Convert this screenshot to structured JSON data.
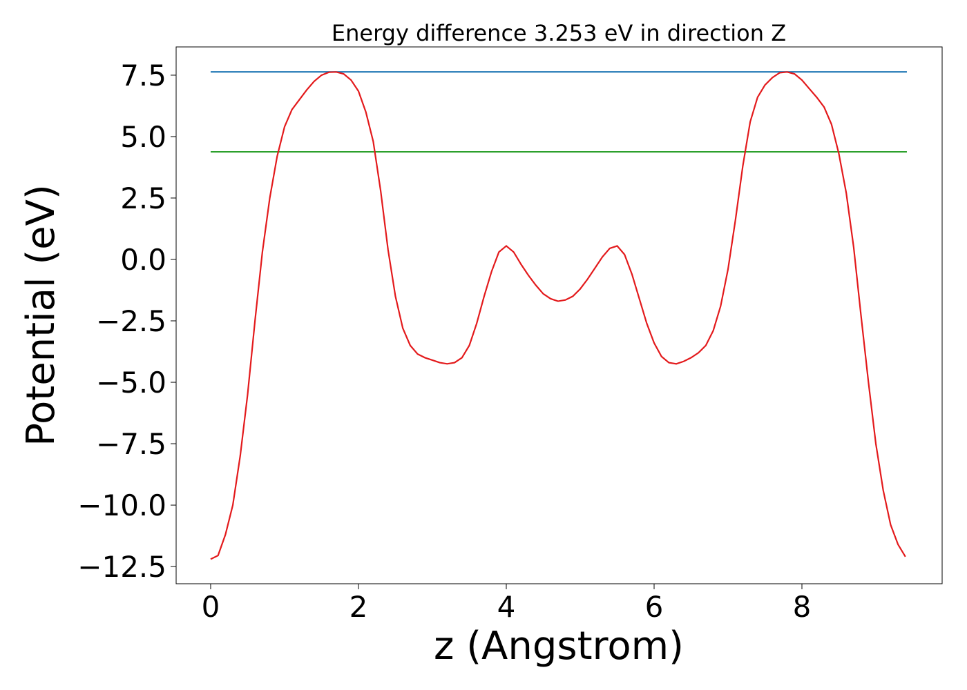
{
  "chart_data": {
    "type": "line",
    "title": "Energy difference 3.253 eV in direction Z",
    "xlabel": "z (Angstrom)",
    "ylabel": "Potential (eV)",
    "xlim": [
      -0.467,
      9.897
    ],
    "ylim": [
      -13.2,
      8.65
    ],
    "xticks": [
      0,
      2,
      4,
      6,
      8
    ],
    "yticks": [
      {
        "value": 7.5,
        "label": "7.5"
      },
      {
        "value": 5,
        "label": "5.0"
      },
      {
        "value": 2.5,
        "label": "2.5"
      },
      {
        "value": 0,
        "label": "0.0"
      },
      {
        "value": -2.5,
        "label": "−2.5"
      },
      {
        "value": -5,
        "label": "−5.0"
      },
      {
        "value": -7.5,
        "label": "−7.5"
      },
      {
        "value": -10,
        "label": "−10.0"
      },
      {
        "value": -12.5,
        "label": "−12.5"
      }
    ],
    "series": [
      {
        "color": "#1f77b4",
        "x": [
          0,
          9.42
        ],
        "values": [
          7.633,
          7.633
        ]
      },
      {
        "color": "#2ca02c",
        "x": [
          0,
          9.42
        ],
        "values": [
          4.38,
          4.38
        ]
      },
      {
        "color": "#e31a1c",
        "x": [
          0,
          0.1,
          0.2,
          0.3,
          0.4,
          0.5,
          0.6,
          0.7,
          0.8,
          0.9,
          1.0,
          1.1,
          1.2,
          1.3,
          1.4,
          1.5,
          1.6,
          1.7,
          1.8,
          1.9,
          2.0,
          2.1,
          2.2,
          2.3,
          2.4,
          2.5,
          2.6,
          2.7,
          2.8,
          2.9,
          3.0,
          3.1,
          3.2,
          3.3,
          3.4,
          3.5,
          3.6,
          3.7,
          3.8,
          3.9,
          4.0,
          4.1,
          4.2,
          4.3,
          4.4,
          4.5,
          4.6,
          4.7,
          4.8,
          4.9,
          5.0,
          5.1,
          5.2,
          5.3,
          5.4,
          5.5,
          5.6,
          5.7,
          5.8,
          5.9,
          6.0,
          6.1,
          6.2,
          6.3,
          6.4,
          6.5,
          6.6,
          6.7,
          6.8,
          6.9,
          7.0,
          7.1,
          7.2,
          7.3,
          7.4,
          7.5,
          7.6,
          7.7,
          7.8,
          7.9,
          8.0,
          8.1,
          8.2,
          8.3,
          8.4,
          8.5,
          8.6,
          8.7,
          8.8,
          8.9,
          9.0,
          9.1,
          9.2,
          9.3,
          9.4
        ],
        "values": [
          -12.2,
          -12.05,
          -11.2,
          -10,
          -8,
          -5.5,
          -2.5,
          0.3,
          2.5,
          4.2,
          5.4,
          6.1,
          6.5,
          6.9,
          7.25,
          7.5,
          7.62,
          7.63,
          7.55,
          7.3,
          6.85,
          6.0,
          4.8,
          2.8,
          0.4,
          -1.5,
          -2.8,
          -3.5,
          -3.85,
          -4.0,
          -4.1,
          -4.2,
          -4.25,
          -4.2,
          -4.0,
          -3.5,
          -2.6,
          -1.5,
          -0.5,
          0.3,
          0.55,
          0.3,
          -0.2,
          -0.65,
          -1.05,
          -1.4,
          -1.6,
          -1.7,
          -1.65,
          -1.5,
          -1.2,
          -0.8,
          -0.35,
          0.1,
          0.45,
          0.55,
          0.2,
          -0.6,
          -1.6,
          -2.6,
          -3.4,
          -3.95,
          -4.2,
          -4.25,
          -4.15,
          -4.0,
          -3.8,
          -3.5,
          -2.9,
          -1.9,
          -0.4,
          1.6,
          3.8,
          5.6,
          6.6,
          7.1,
          7.4,
          7.6,
          7.63,
          7.55,
          7.3,
          6.95,
          6.6,
          6.2,
          5.5,
          4.3,
          2.7,
          0.5,
          -2.3,
          -5.0,
          -7.5,
          -9.4,
          -10.8,
          -11.6,
          -12.1
        ]
      }
    ]
  }
}
